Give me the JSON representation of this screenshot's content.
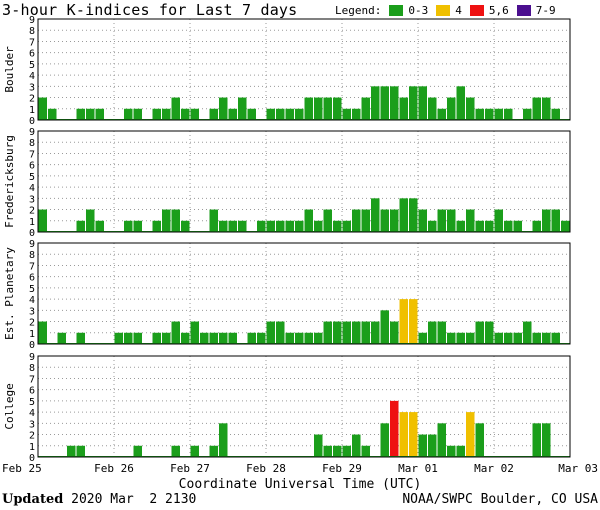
{
  "title": "3-hour K-indices for Last 7 days",
  "legend": {
    "label": "Legend:",
    "items": [
      {
        "label": "0-3",
        "color": "#1b9e1b"
      },
      {
        "label": "4",
        "color": "#f0c000"
      },
      {
        "label": "5,6",
        "color": "#ee1111"
      },
      {
        "label": "7-9",
        "color": "#4b0f8f"
      }
    ]
  },
  "footer": {
    "updated_label": "Updated",
    "updated_value": "2020 Mar  2 2130",
    "credit": "NOAA/SWPC Boulder, CO USA"
  },
  "chart_data": {
    "type": "bar",
    "title": "3-hour K-indices for Last 7 days",
    "xlabel": "Coordinate Universal Time (UTC)",
    "x_ticks": [
      "Feb 25",
      "Feb 26",
      "Feb 27",
      "Feb 28",
      "Feb 29",
      "Mar 01",
      "Mar 02",
      "Mar 03"
    ],
    "ylim": [
      0,
      9
    ],
    "y_ticks": [
      "0",
      "1",
      "2",
      "3",
      "4",
      "5",
      "6",
      "7",
      "8",
      "9"
    ],
    "grid": "dotted",
    "panels": [
      {
        "name": "Boulder",
        "values": [
          2,
          1,
          0,
          0,
          1,
          1,
          1,
          0,
          0,
          1,
          1,
          0,
          1,
          1,
          2,
          1,
          1,
          0,
          1,
          2,
          1,
          2,
          1,
          0,
          1,
          1,
          1,
          1,
          2,
          2,
          2,
          2,
          1,
          1,
          2,
          3,
          3,
          3,
          2,
          3,
          3,
          2,
          1,
          2,
          3,
          2,
          1,
          1,
          1,
          1,
          0,
          1,
          2,
          2,
          1,
          0
        ]
      },
      {
        "name": "Fredericksburg",
        "values": [
          2,
          0,
          0,
          0,
          1,
          2,
          1,
          0,
          0,
          1,
          1,
          0,
          1,
          2,
          2,
          1,
          0,
          0,
          2,
          1,
          1,
          1,
          0,
          1,
          1,
          1,
          1,
          1,
          2,
          1,
          2,
          1,
          1,
          2,
          2,
          3,
          2,
          2,
          3,
          3,
          2,
          1,
          2,
          2,
          1,
          2,
          1,
          1,
          2,
          1,
          1,
          0,
          1,
          2,
          2,
          1
        ]
      },
      {
        "name": "Est. Planetary",
        "values": [
          2,
          0,
          1,
          0,
          1,
          0,
          0,
          0,
          1,
          1,
          1,
          0,
          1,
          1,
          2,
          1,
          2,
          1,
          1,
          1,
          1,
          0,
          1,
          1,
          2,
          2,
          1,
          1,
          1,
          1,
          2,
          2,
          2,
          2,
          2,
          2,
          3,
          2,
          4,
          4,
          1,
          2,
          2,
          1,
          1,
          1,
          2,
          2,
          1,
          1,
          1,
          2,
          1,
          1,
          1,
          0
        ]
      },
      {
        "name": "College",
        "values": [
          0,
          0,
          0,
          1,
          1,
          0,
          0,
          0,
          0,
          0,
          1,
          0,
          0,
          0,
          1,
          0,
          1,
          0,
          1,
          3,
          0,
          0,
          0,
          0,
          0,
          0,
          0,
          0,
          0,
          2,
          1,
          1,
          1,
          2,
          1,
          0,
          3,
          5,
          4,
          4,
          2,
          2,
          3,
          1,
          1,
          4,
          3,
          0,
          0,
          0,
          0,
          0,
          3,
          3,
          0,
          0
        ]
      }
    ]
  }
}
